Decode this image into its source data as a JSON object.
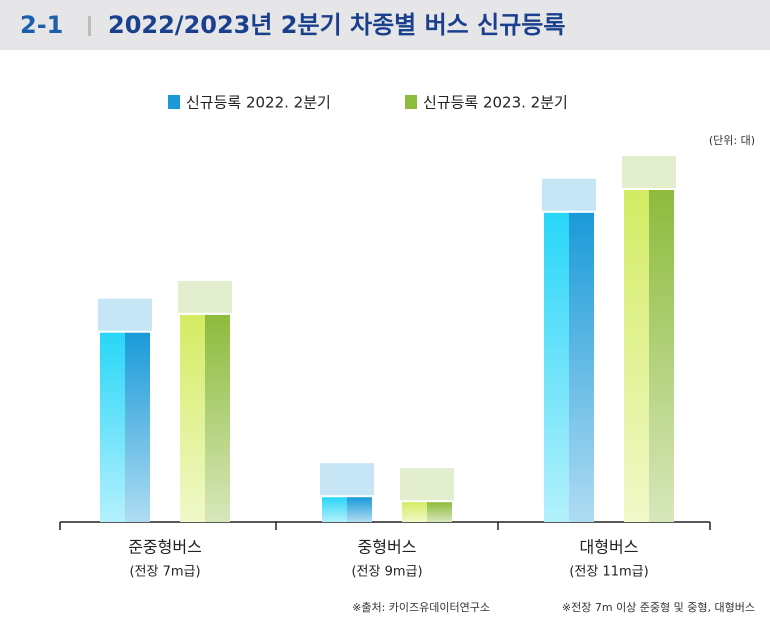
{
  "chart_data": {
    "type": "bar",
    "header_number": "2-1",
    "title": "2022/2023년 2분기 차종별 버스 신규등록",
    "unit_note": "(단위: 대)",
    "categories": [
      "준중형버스",
      "중형버스",
      "대형버스"
    ],
    "category_notes": [
      "(전장 7m급)",
      "(전장 9m급)",
      "(전장 11m급)"
    ],
    "series": [
      {
        "name": "신규등록 2022. 2분기",
        "color": "#1a9ad9",
        "light": "#28d6f8",
        "values": [
          191,
          25,
          312
        ]
      },
      {
        "name": "신규등록 2023. 2분기",
        "color": "#8dbb3c",
        "light": "#d4ec63",
        "values": [
          209,
          20,
          335
        ]
      }
    ],
    "source": "※출처: 카이즈유데이터연구소",
    "footnote": "※전장 7m 이상 준중형 및 중형, 대형버스"
  }
}
